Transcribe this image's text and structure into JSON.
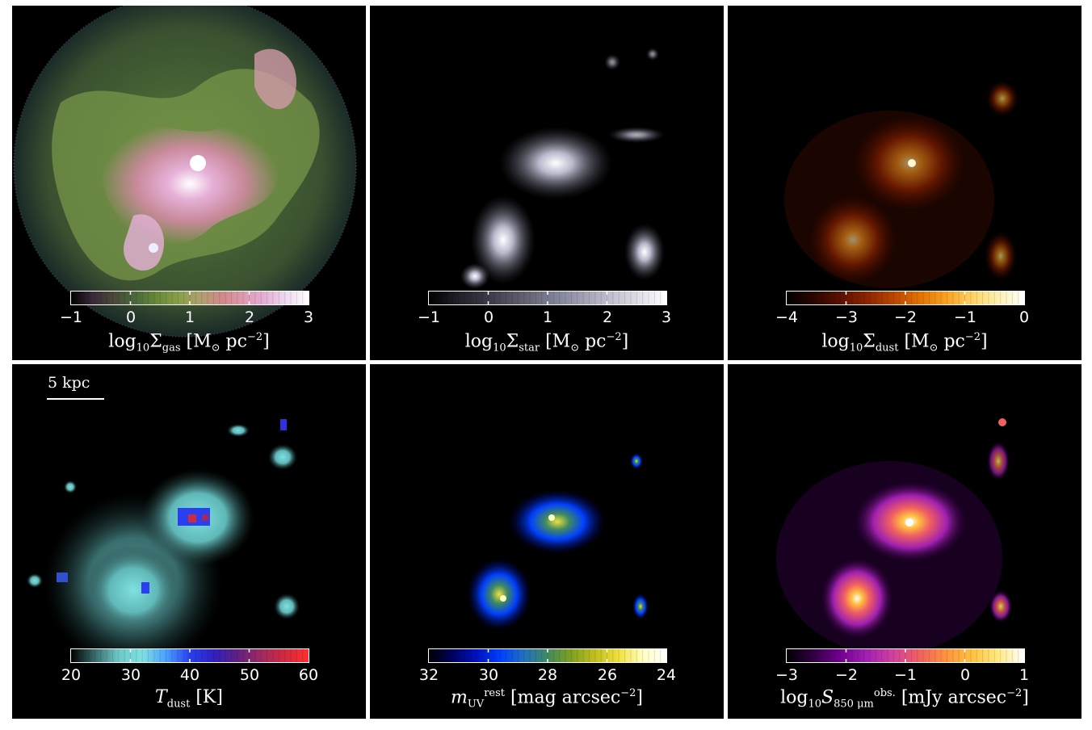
{
  "panels": [
    {
      "id": "gas",
      "colorbar": {
        "ticks": [
          "−1",
          "0",
          "1",
          "2",
          "3"
        ],
        "label_main": "log",
        "label_sub1": "10",
        "label_sym": "Σ",
        "label_sub2": "gas",
        "label_units": "[M",
        "label_sun": "⊙",
        "label_units2": " pc",
        "label_sup": "−2",
        "label_end": "]",
        "colors": [
          "#000000",
          "#3a2a3a",
          "#4a4a3a",
          "#4a6a3a",
          "#6a8a3a",
          "#8aa04a",
          "#b0a070",
          "#d08a8a",
          "#e09ab0",
          "#e6b0d8",
          "#eedcf0",
          "#ffffff"
        ]
      }
    },
    {
      "id": "star",
      "colorbar": {
        "ticks": [
          "−1",
          "0",
          "1",
          "2",
          "3"
        ],
        "label_main": "log",
        "label_sub1": "10",
        "label_sym": "Σ",
        "label_sub2": "star",
        "label_units": "[M",
        "label_sun": "⊙",
        "label_units2": " pc",
        "label_sup": "−2",
        "label_end": "]",
        "colors": [
          "#000000",
          "#202028",
          "#3a3a48",
          "#5a5a6a",
          "#7a7a8e",
          "#9a9aae",
          "#bcbccc",
          "#dcdce6",
          "#ffffff"
        ]
      }
    },
    {
      "id": "dust",
      "colorbar": {
        "ticks": [
          "−4",
          "−3",
          "−2",
          "−1",
          "0"
        ],
        "label_main": "log",
        "label_sub1": "10",
        "label_sym": "Σ",
        "label_sub2": "dust",
        "label_units": "[M",
        "label_sun": "⊙",
        "label_units2": " pc",
        "label_sup": "−2",
        "label_end": "]",
        "colors": [
          "#000000",
          "#2a0500",
          "#5a1000",
          "#8a2400",
          "#b84400",
          "#e07000",
          "#f8a020",
          "#ffd060",
          "#fff0b0",
          "#ffffff"
        ]
      }
    },
    {
      "id": "tdust",
      "scalebar": "5 kpc",
      "colorbar": {
        "ticks": [
          "20",
          "30",
          "40",
          "50",
          "60"
        ],
        "label_main": "T",
        "label_sub2": "dust",
        "label_units": "[K]",
        "colors": [
          "#000000",
          "#3a6a6a",
          "#70c8c8",
          "#80e0e0",
          "#4aa0ff",
          "#2a40f0",
          "#3020c0",
          "#602080",
          "#a02a60",
          "#d02a40",
          "#ff3030"
        ]
      }
    },
    {
      "id": "muv",
      "colorbar": {
        "ticks": [
          "32",
          "30",
          "28",
          "26",
          "24"
        ],
        "label_main": "m",
        "label_sub2": "UV",
        "label_sup": "rest",
        "label_units": "[mag arcsec",
        "label_sup2": "−2",
        "label_end": "]",
        "colors": [
          "#000000",
          "#000060",
          "#0010c0",
          "#0040ff",
          "#2070c0",
          "#408a60",
          "#80a020",
          "#c0c020",
          "#f0e040",
          "#ffffc0",
          "#ffffff"
        ]
      }
    },
    {
      "id": "s850",
      "colorbar": {
        "ticks": [
          "−3",
          "−2",
          "−1",
          "0",
          "1"
        ],
        "label_main": "log",
        "label_sub1": "10",
        "label_sym": "S",
        "label_sub2": "850 μm",
        "label_sup": "obs.",
        "label_units": "[mJy arcsec",
        "label_sup2": "−2",
        "label_end": "]",
        "colors": [
          "#000000",
          "#300040",
          "#700090",
          "#a020b0",
          "#d040a0",
          "#f06060",
          "#ff9040",
          "#ffc040",
          "#ffe880",
          "#ffffff"
        ]
      }
    }
  ]
}
